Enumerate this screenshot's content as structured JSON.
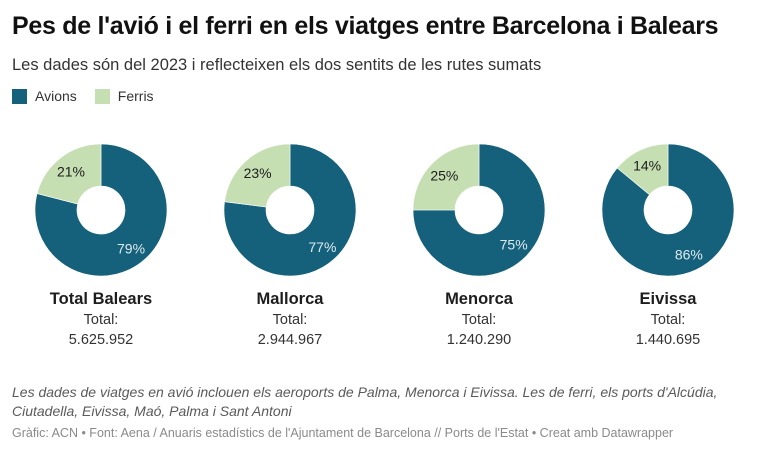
{
  "title": "Pes de l'avió i el ferri en els viatges entre Barcelona i Balears",
  "subtitle": "Les dades són del 2023 i reflecteixen els dos sentits de les rutes sumats",
  "legend": [
    {
      "label": "Avions",
      "color": "#15607a"
    },
    {
      "label": "Ferris",
      "color": "#c6dfb2"
    }
  ],
  "note": "Les dades de viatges en avió inclouen els aeroports de Palma, Menorca i Eivissa. Les de ferri, els ports d'Alcúdia, Ciutadella, Eivissa, Maó, Palma i Sant Antoni",
  "source": "Gràfic: ACN • Font: Aena / Anuaris estadístics de l'Ajuntament de Barcelona // Ports de l'Estat • Creat amb Datawrapper",
  "chart_data": {
    "type": "pie",
    "variant": "donut",
    "series_names": [
      "Avions",
      "Ferris"
    ],
    "colors": {
      "Avions": "#15607a",
      "Ferris": "#c6dfb2"
    },
    "charts": [
      {
        "name": "Total Balears",
        "total_label": "Total:",
        "total": "5.625.952",
        "values": {
          "Avions": 79,
          "Ferris": 21
        },
        "labels": {
          "Avions": "79%",
          "Ferris": "21%"
        }
      },
      {
        "name": "Mallorca",
        "total_label": "Total:",
        "total": "2.944.967",
        "values": {
          "Avions": 77,
          "Ferris": 23
        },
        "labels": {
          "Avions": "77%",
          "Ferris": "23%"
        }
      },
      {
        "name": "Menorca",
        "total_label": "Total:",
        "total": "1.240.290",
        "values": {
          "Avions": 75,
          "Ferris": 25
        },
        "labels": {
          "Avions": "75%",
          "Ferris": "25%"
        }
      },
      {
        "name": "Eivissa",
        "total_label": "Total:",
        "total": "1.440.695",
        "values": {
          "Avions": 86,
          "Ferris": 14
        },
        "labels": {
          "Avions": "86%",
          "Ferris": "14%"
        }
      }
    ]
  }
}
